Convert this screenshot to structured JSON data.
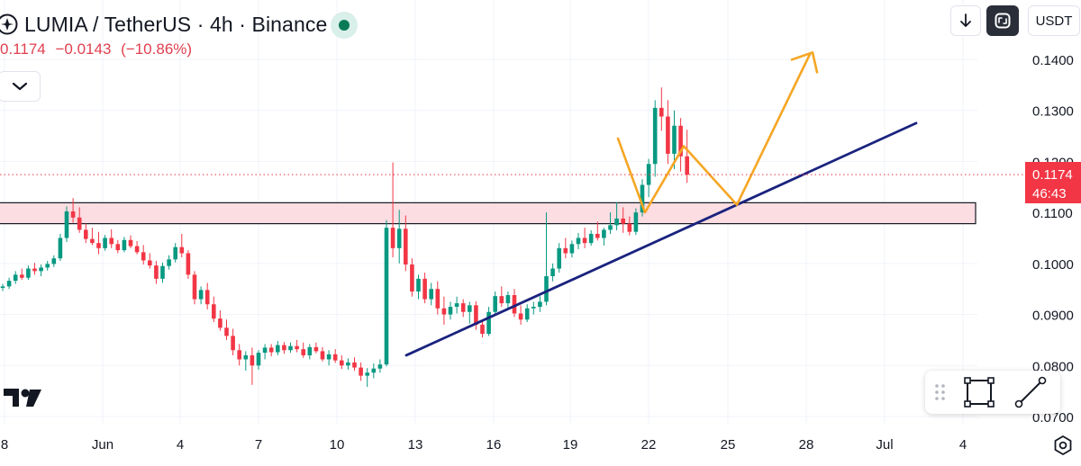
{
  "header": {
    "symbol_title": "LUMIA / TetherUS · 4h · Binance",
    "last_price": "0.1174",
    "change": "−0.0143",
    "change_pct": "(−10.86%)"
  },
  "toolbar": {
    "currency_label": "USDT"
  },
  "price_label": {
    "price": "0.1174",
    "countdown": "46:43"
  },
  "colors": {
    "up": "#089981",
    "down": "#f23645",
    "trendline": "#1a237e",
    "projection": "#f5a623",
    "zone_fill": "#fbdde2",
    "price_tag": "#f23645"
  },
  "chart_data": {
    "type": "candlestick",
    "yaxis": {
      "ticks": [
        "0.1400",
        "0.1300",
        "0.1200",
        "0.1100",
        "0.1000",
        "0.0900",
        "0.0800",
        "0.0700"
      ],
      "ylim": [
        0.0693,
        0.1501
      ]
    },
    "xaxis": {
      "ticks": [
        "8",
        "Jun",
        "4",
        "7",
        "10",
        "13",
        "16",
        "19",
        "22",
        "25",
        "28",
        "Jul",
        "4"
      ]
    },
    "current_price": 0.1174,
    "candles": [
      [
        0.0952,
        0.096,
        0.0946,
        0.0955
      ],
      [
        0.0955,
        0.0972,
        0.095,
        0.0966
      ],
      [
        0.0966,
        0.0985,
        0.096,
        0.0978
      ],
      [
        0.0978,
        0.099,
        0.0968,
        0.0972
      ],
      [
        0.0972,
        0.0996,
        0.0968,
        0.099
      ],
      [
        0.099,
        0.1001,
        0.0978,
        0.0985
      ],
      [
        0.0985,
        0.0998,
        0.0975,
        0.0992
      ],
      [
        0.0992,
        0.1005,
        0.0986,
        0.0999
      ],
      [
        0.0999,
        0.1016,
        0.0993,
        0.101
      ],
      [
        0.101,
        0.1058,
        0.1005,
        0.105
      ],
      [
        0.105,
        0.1112,
        0.1042,
        0.1102
      ],
      [
        0.1102,
        0.1128,
        0.108,
        0.109
      ],
      [
        0.109,
        0.111,
        0.106,
        0.1066
      ],
      [
        0.1066,
        0.1078,
        0.104,
        0.1048
      ],
      [
        0.1048,
        0.107,
        0.1036,
        0.104
      ],
      [
        0.104,
        0.1062,
        0.1018,
        0.103
      ],
      [
        0.103,
        0.1056,
        0.1025,
        0.105
      ],
      [
        0.105,
        0.1067,
        0.103,
        0.1038
      ],
      [
        0.1038,
        0.1046,
        0.102,
        0.1026
      ],
      [
        0.1026,
        0.1052,
        0.1022,
        0.1046
      ],
      [
        0.1046,
        0.1055,
        0.103,
        0.1034
      ],
      [
        0.1034,
        0.1044,
        0.1018,
        0.1022
      ],
      [
        0.1022,
        0.1036,
        0.0998,
        0.1006
      ],
      [
        0.1006,
        0.102,
        0.099,
        0.0996
      ],
      [
        0.0996,
        0.1005,
        0.096,
        0.097
      ],
      [
        0.097,
        0.1002,
        0.0962,
        0.0995
      ],
      [
        0.0995,
        0.1016,
        0.0988,
        0.1008
      ],
      [
        0.1008,
        0.104,
        0.1002,
        0.1032
      ],
      [
        0.1032,
        0.1058,
        0.1012,
        0.102
      ],
      [
        0.102,
        0.1026,
        0.097,
        0.0978
      ],
      [
        0.0978,
        0.0985,
        0.092,
        0.093
      ],
      [
        0.093,
        0.0955,
        0.092,
        0.0948
      ],
      [
        0.0948,
        0.0962,
        0.091,
        0.092
      ],
      [
        0.092,
        0.0935,
        0.0885,
        0.0892
      ],
      [
        0.0892,
        0.0908,
        0.0868,
        0.0874
      ],
      [
        0.0874,
        0.089,
        0.085,
        0.0858
      ],
      [
        0.0858,
        0.0872,
        0.082,
        0.083
      ],
      [
        0.083,
        0.0842,
        0.08,
        0.0812
      ],
      [
        0.0812,
        0.0828,
        0.079,
        0.082
      ],
      [
        0.082,
        0.0835,
        0.0762,
        0.08
      ],
      [
        0.08,
        0.083,
        0.0792,
        0.0825
      ],
      [
        0.0825,
        0.0842,
        0.0812,
        0.0835
      ],
      [
        0.0835,
        0.0842,
        0.0818,
        0.0826
      ],
      [
        0.0826,
        0.0848,
        0.082,
        0.084
      ],
      [
        0.084,
        0.0846,
        0.0823,
        0.083
      ],
      [
        0.083,
        0.0845,
        0.0825,
        0.0838
      ],
      [
        0.0838,
        0.085,
        0.0826,
        0.0832
      ],
      [
        0.0832,
        0.0845,
        0.0815,
        0.082
      ],
      [
        0.082,
        0.0842,
        0.0812,
        0.0836
      ],
      [
        0.0836,
        0.0845,
        0.0824,
        0.0828
      ],
      [
        0.0828,
        0.0836,
        0.0808,
        0.0812
      ],
      [
        0.0812,
        0.083,
        0.08,
        0.0822
      ],
      [
        0.0822,
        0.0832,
        0.0805,
        0.081
      ],
      [
        0.081,
        0.082,
        0.0793,
        0.08
      ],
      [
        0.08,
        0.0814,
        0.0792,
        0.0806
      ],
      [
        0.0806,
        0.0816,
        0.079,
        0.0796
      ],
      [
        0.0796,
        0.0806,
        0.077,
        0.078
      ],
      [
        0.078,
        0.0795,
        0.0758,
        0.0786
      ],
      [
        0.0786,
        0.0804,
        0.0775,
        0.0794
      ],
      [
        0.0794,
        0.0812,
        0.0786,
        0.0802
      ],
      [
        0.0802,
        0.1085,
        0.0798,
        0.107
      ],
      [
        0.107,
        0.1198,
        0.1012,
        0.103
      ],
      [
        0.103,
        0.1105,
        0.1,
        0.1068
      ],
      [
        0.1068,
        0.1094,
        0.0985,
        0.0998
      ],
      [
        0.0998,
        0.101,
        0.0935,
        0.0945
      ],
      [
        0.0945,
        0.0978,
        0.093,
        0.097
      ],
      [
        0.097,
        0.0982,
        0.0922,
        0.093
      ],
      [
        0.093,
        0.0962,
        0.0918,
        0.095
      ],
      [
        0.095,
        0.0965,
        0.09,
        0.0912
      ],
      [
        0.0912,
        0.0935,
        0.088,
        0.09
      ],
      [
        0.09,
        0.0925,
        0.089,
        0.0915
      ],
      [
        0.0915,
        0.0935,
        0.0902,
        0.0922
      ],
      [
        0.0922,
        0.093,
        0.0895,
        0.0905
      ],
      [
        0.0905,
        0.0925,
        0.0882,
        0.0918
      ],
      [
        0.0918,
        0.0926,
        0.087,
        0.088
      ],
      [
        0.088,
        0.089,
        0.0855,
        0.0862
      ],
      [
        0.0862,
        0.0915,
        0.0858,
        0.0905
      ],
      [
        0.0905,
        0.0945,
        0.09,
        0.0936
      ],
      [
        0.0936,
        0.0955,
        0.0915,
        0.0922
      ],
      [
        0.0922,
        0.0945,
        0.091,
        0.0938
      ],
      [
        0.0938,
        0.095,
        0.0895,
        0.0902
      ],
      [
        0.0902,
        0.0918,
        0.088,
        0.089
      ],
      [
        0.089,
        0.092,
        0.0885,
        0.0912
      ],
      [
        0.0912,
        0.0925,
        0.09,
        0.0915
      ],
      [
        0.0915,
        0.0936,
        0.0905,
        0.0925
      ],
      [
        0.0925,
        0.11,
        0.0918,
        0.0975
      ],
      [
        0.0975,
        0.1,
        0.0965,
        0.099
      ],
      [
        0.099,
        0.104,
        0.0982,
        0.103
      ],
      [
        0.103,
        0.105,
        0.101,
        0.102
      ],
      [
        0.102,
        0.1045,
        0.1012,
        0.1038
      ],
      [
        0.1038,
        0.106,
        0.1028,
        0.105
      ],
      [
        0.105,
        0.107,
        0.103,
        0.104
      ],
      [
        0.104,
        0.1065,
        0.1035,
        0.1058
      ],
      [
        0.1058,
        0.1082,
        0.1045,
        0.105
      ],
      [
        0.105,
        0.107,
        0.1035,
        0.1066
      ],
      [
        0.1066,
        0.11,
        0.1058,
        0.1075
      ],
      [
        0.1075,
        0.112,
        0.1065,
        0.1088
      ],
      [
        0.1088,
        0.111,
        0.106,
        0.1078
      ],
      [
        0.1078,
        0.1092,
        0.1055,
        0.1062
      ],
      [
        0.1062,
        0.1108,
        0.1056,
        0.11
      ],
      [
        0.11,
        0.1165,
        0.1092,
        0.1154
      ],
      [
        0.1154,
        0.1205,
        0.113,
        0.1195
      ],
      [
        0.1195,
        0.132,
        0.117,
        0.1305
      ],
      [
        0.1305,
        0.1345,
        0.126,
        0.1288
      ],
      [
        0.1288,
        0.132,
        0.1195,
        0.1215
      ],
      [
        0.1215,
        0.13,
        0.1185,
        0.127
      ],
      [
        0.127,
        0.1285,
        0.118,
        0.121
      ],
      [
        0.121,
        0.1262,
        0.1158,
        0.1174
      ]
    ],
    "drawings": {
      "resistance_zone": {
        "top": 0.1119,
        "bottom": 0.1078,
        "from_label": "8",
        "to_label": "4"
      },
      "trendline": {
        "start_price": 0.082,
        "end_price": 0.1275
      },
      "projection_path": [
        0.1245,
        0.11,
        0.123,
        0.1115,
        0.141
      ]
    }
  }
}
